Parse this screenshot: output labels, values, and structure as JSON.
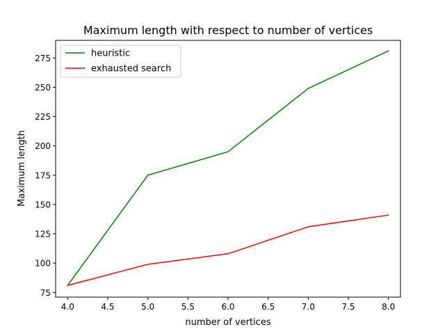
{
  "chart_data": {
    "type": "line",
    "title": "Maximum length with respect to number of vertices",
    "xlabel": "number of vertices",
    "ylabel": "Maximum length",
    "xlim": [
      3.85,
      8.15
    ],
    "ylim": [
      71,
      290
    ],
    "x_ticks": [
      4.0,
      4.5,
      5.0,
      5.5,
      6.0,
      6.5,
      7.0,
      7.5,
      8.0
    ],
    "x_tick_labels": [
      "4.0",
      "4.5",
      "5.0",
      "5.5",
      "6.0",
      "6.5",
      "7.0",
      "7.5",
      "8.0"
    ],
    "y_ticks": [
      75,
      100,
      125,
      150,
      175,
      200,
      225,
      250,
      275
    ],
    "y_tick_labels": [
      "75",
      "100",
      "125",
      "150",
      "175",
      "200",
      "225",
      "250",
      "275"
    ],
    "grid": false,
    "legend_position": "top-left",
    "x": [
      4,
      5,
      6,
      7,
      8
    ],
    "series": [
      {
        "name": "heuristic",
        "color": "#008000",
        "values": [
          81,
          175,
          195,
          249,
          281
        ]
      },
      {
        "name": "exhausted search",
        "color": "#ff0000",
        "values": [
          81,
          99,
          108,
          131,
          141
        ]
      }
    ]
  }
}
